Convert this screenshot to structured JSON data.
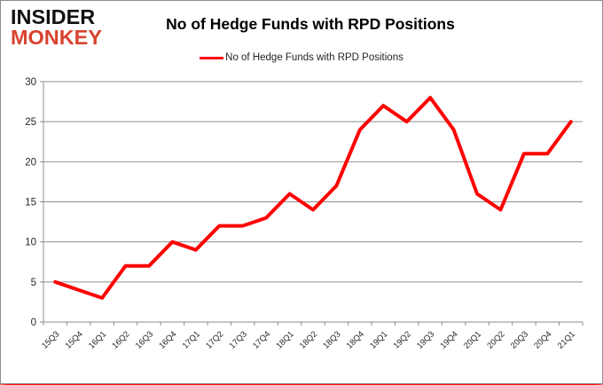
{
  "page": {
    "background": "#ffffff",
    "border_color": "#8c8c8c",
    "bottom_glow_color": "#ff0000"
  },
  "logo": {
    "line1": "INSIDER",
    "line2": "MONKEY",
    "line1_color": "#111111",
    "line2_color": "#d8432f"
  },
  "header": {
    "title": "No of Hedge Funds with RPD Positions"
  },
  "legend": {
    "label": "No of Hedge Funds with RPD Positions",
    "line_color": "#ff0000"
  },
  "chart_data": {
    "type": "line",
    "title": "No of Hedge Funds with RPD Positions",
    "categories": [
      "15Q3",
      "15Q4",
      "16Q1",
      "16Q2",
      "16Q3",
      "16Q4",
      "17Q1",
      "17Q2",
      "17Q3",
      "17Q4",
      "18Q1",
      "18Q2",
      "18Q3",
      "18Q4",
      "19Q1",
      "19Q2",
      "19Q3",
      "19Q4",
      "20Q1",
      "20Q2",
      "20Q3",
      "20Q4",
      "21Q1"
    ],
    "series": [
      {
        "name": "No of Hedge Funds with RPD Positions",
        "color": "#ff0000",
        "values": [
          5,
          4,
          3,
          7,
          7,
          10,
          9,
          12,
          12,
          13,
          16,
          14,
          17,
          24,
          27,
          25,
          28,
          24,
          16,
          14,
          21,
          21,
          25
        ]
      }
    ],
    "xlabel": "",
    "ylabel": "",
    "ylim": [
      0,
      30
    ],
    "yticks": [
      0,
      5,
      10,
      15,
      20,
      25,
      30
    ],
    "grid": true,
    "gridline_color": "#8f8f8f",
    "axis_text_color": "#262626",
    "legend_position": "top-center"
  }
}
